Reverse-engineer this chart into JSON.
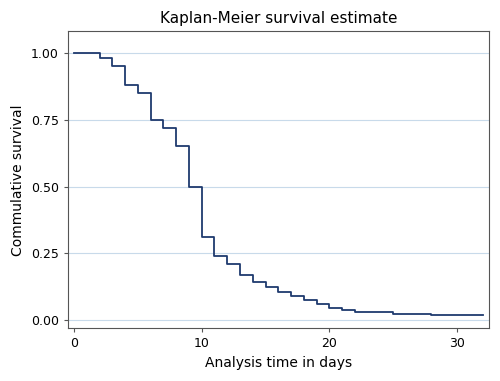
{
  "title": "Kaplan-Meier survival estimate",
  "xlabel": "Analysis time in days",
  "ylabel": "Commulative survival",
  "line_color": "#1f3a6e",
  "line_width": 1.3,
  "background_color": "#ffffff",
  "grid_color": "#c8daea",
  "xlim": [
    -0.5,
    32.5
  ],
  "ylim": [
    -0.03,
    1.08
  ],
  "xticks": [
    0,
    10,
    20,
    30
  ],
  "yticks": [
    0.0,
    0.25,
    0.5,
    0.75,
    1.0
  ],
  "ytick_labels": [
    "0.00",
    "0.25",
    "0.50",
    "0.75",
    "1.00"
  ],
  "steps": [
    [
      0,
      1.0
    ],
    [
      2,
      1.0
    ],
    [
      2,
      0.98
    ],
    [
      3,
      0.98
    ],
    [
      3,
      0.95
    ],
    [
      4,
      0.95
    ],
    [
      4,
      0.88
    ],
    [
      5,
      0.88
    ],
    [
      5,
      0.85
    ],
    [
      6,
      0.85
    ],
    [
      6,
      0.75
    ],
    [
      7,
      0.75
    ],
    [
      7,
      0.72
    ],
    [
      8,
      0.72
    ],
    [
      8,
      0.65
    ],
    [
      9,
      0.65
    ],
    [
      9,
      0.5
    ],
    [
      10,
      0.5
    ],
    [
      10,
      0.31
    ],
    [
      11,
      0.31
    ],
    [
      11,
      0.24
    ],
    [
      12,
      0.24
    ],
    [
      12,
      0.21
    ],
    [
      13,
      0.21
    ],
    [
      13,
      0.17
    ],
    [
      14,
      0.17
    ],
    [
      14,
      0.145
    ],
    [
      15,
      0.145
    ],
    [
      15,
      0.125
    ],
    [
      16,
      0.125
    ],
    [
      16,
      0.105
    ],
    [
      17,
      0.105
    ],
    [
      17,
      0.09
    ],
    [
      18,
      0.09
    ],
    [
      18,
      0.075
    ],
    [
      19,
      0.075
    ],
    [
      19,
      0.06
    ],
    [
      20,
      0.06
    ],
    [
      20,
      0.045
    ],
    [
      21,
      0.045
    ],
    [
      21,
      0.04
    ],
    [
      22,
      0.04
    ],
    [
      22,
      0.03
    ],
    [
      25,
      0.03
    ],
    [
      25,
      0.025
    ],
    [
      28,
      0.025
    ],
    [
      28,
      0.02
    ],
    [
      32,
      0.02
    ]
  ]
}
